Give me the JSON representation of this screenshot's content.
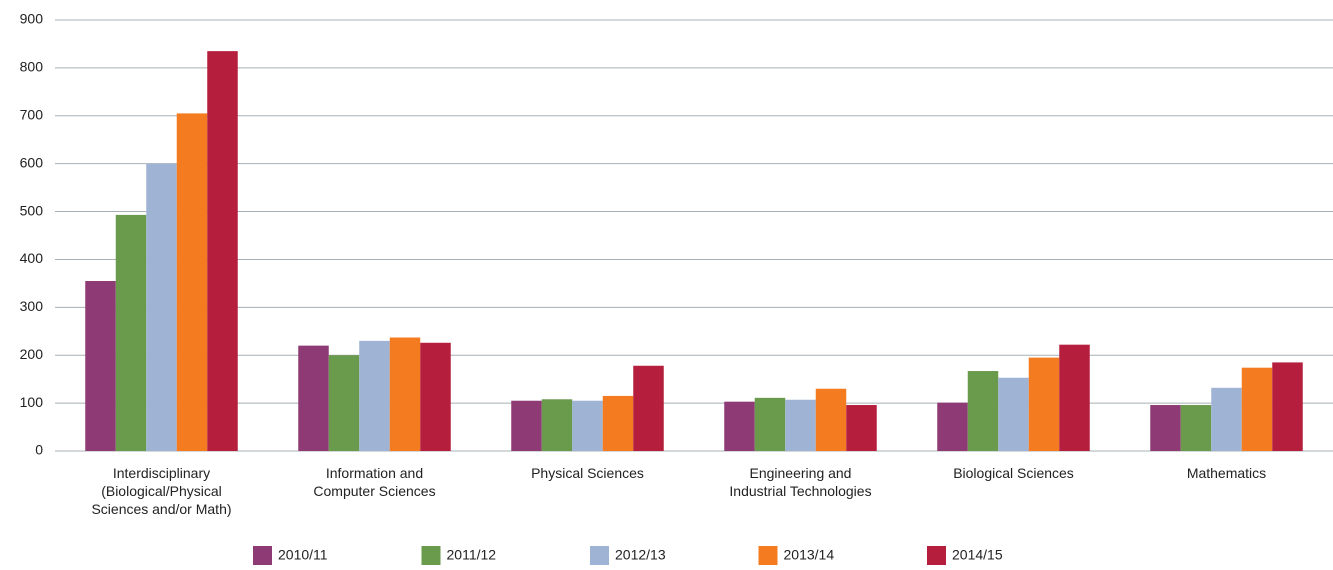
{
  "chart_data": {
    "type": "bar",
    "categories": [
      "Interdisciplinary\n(Biological/Physical\nSciences and/or Math)",
      "Information and\nComputer Sciences",
      "Physical Sciences",
      "Engineering and\nIndustrial Technologies",
      "Biological Sciences",
      "Mathematics"
    ],
    "series": [
      {
        "name": "2010/11",
        "color": "#8e3a74",
        "values": [
          355,
          220,
          105,
          103,
          101,
          96
        ]
      },
      {
        "name": "2011/12",
        "color": "#6a9a4c",
        "values": [
          493,
          200,
          108,
          111,
          167,
          96
        ]
      },
      {
        "name": "2012/13",
        "color": "#9fb3d4",
        "values": [
          600,
          230,
          105,
          107,
          153,
          132
        ]
      },
      {
        "name": "2013/14",
        "color": "#f47b20",
        "values": [
          705,
          237,
          115,
          130,
          195,
          174
        ]
      },
      {
        "name": "2014/15",
        "color": "#b51f3d",
        "values": [
          835,
          226,
          178,
          96,
          222,
          185
        ]
      }
    ],
    "ylim": [
      0,
      900
    ],
    "yticks": [
      0,
      100,
      200,
      300,
      400,
      500,
      600,
      700,
      800,
      900
    ],
    "grid": true,
    "legend": "bottom"
  }
}
